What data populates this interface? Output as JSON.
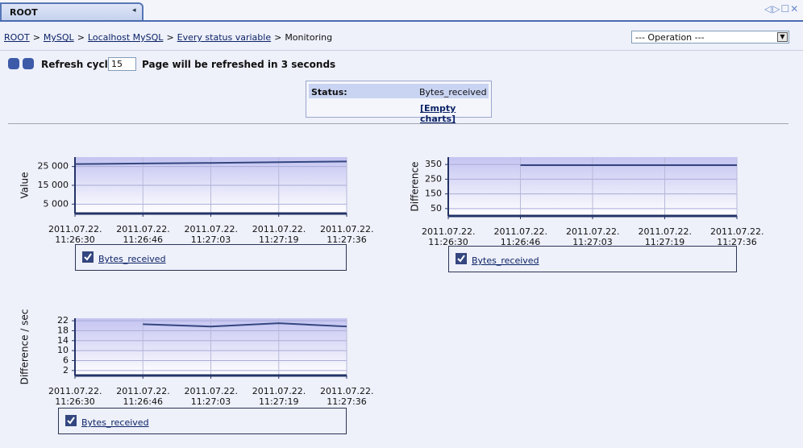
{
  "tab": {
    "title": "ROOT"
  },
  "breadcrumb": {
    "items": [
      "ROOT",
      "MySQL",
      "Localhost MySQL",
      "Every status variable"
    ],
    "separator": ">",
    "current": "Monitoring"
  },
  "operation_select": "--- Operation ---",
  "refresh": {
    "label": "Refresh cycle:",
    "value": "15",
    "message": "Page will be refreshed in 3 seconds"
  },
  "status_box": {
    "label": "Status:",
    "value": "Bytes_received",
    "link": "[Empty charts]"
  },
  "charts": [
    {
      "type": "line",
      "y_label": "Value",
      "categories": [
        "2011.07.22. 11:26:30",
        "2011.07.22. 11:26:46",
        "2011.07.22. 11:27:03",
        "2011.07.22. 11:27:19",
        "2011.07.22. 11:27:36"
      ],
      "series": [
        {
          "name": "Bytes_received",
          "color": "#34467f",
          "values": [
            26300,
            26600,
            26900,
            27300,
            27700
          ]
        }
      ],
      "ylim": [
        0,
        30000
      ],
      "yticks": [
        {
          "value": 5000,
          "label": "5 000"
        },
        {
          "value": 15000,
          "label": "15 000"
        },
        {
          "value": 25000,
          "label": "25 000"
        }
      ],
      "grid": true
    },
    {
      "type": "line",
      "y_label": "Difference",
      "categories": [
        "2011.07.22. 11:26:30",
        "2011.07.22. 11:26:46",
        "2011.07.22. 11:27:03",
        "2011.07.22. 11:27:19",
        "2011.07.22. 11:27:36"
      ],
      "series": [
        {
          "name": "Bytes_received",
          "color": "#34467f",
          "values": [
            null,
            345,
            345,
            345,
            345
          ]
        }
      ],
      "ylim": [
        0,
        400
      ],
      "yticks": [
        50,
        150,
        250,
        350
      ],
      "grid": true
    },
    {
      "type": "line",
      "y_label": "Difference / sec",
      "categories": [
        "2011.07.22. 11:26:30",
        "2011.07.22. 11:26:46",
        "2011.07.22. 11:27:03",
        "2011.07.22. 11:27:19",
        "2011.07.22. 11:27:36"
      ],
      "series": [
        {
          "name": "Bytes_received",
          "color": "#34467f",
          "values": [
            null,
            20.6,
            19.7,
            21,
            19.7
          ]
        }
      ],
      "ylim": [
        0,
        23
      ],
      "yticks": [
        2,
        6,
        10,
        14,
        18,
        22
      ],
      "grid": true
    }
  ]
}
